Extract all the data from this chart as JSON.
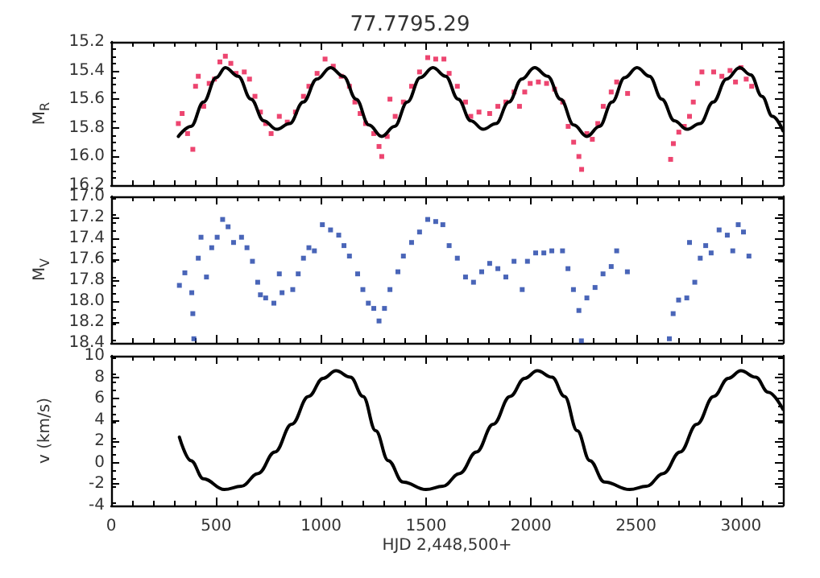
{
  "chart_data": [
    {
      "type": "scatter",
      "title": "77.7795.29",
      "ylabel": "M$_{R}$",
      "xlim": [
        0,
        3200
      ],
      "xticks": [
        0,
        500,
        1000,
        1500,
        2000,
        2500,
        3000
      ],
      "ylim": [
        16.2,
        15.2
      ],
      "yticks": [
        15.2,
        15.4,
        15.6,
        15.8,
        {
          "value": 16,
          "label": "16.0"
        },
        16.2
      ],
      "grid": false,
      "marker": "square",
      "tick_labels": "y",
      "series": [
        {
          "color": "#e8174c",
          "x": [
            320,
            338,
            364,
            389,
            402,
            415,
            441,
            467,
            492,
            518,
            544,
            570,
            595,
            634,
            659,
            685,
            711,
            736,
            762,
            801,
            839,
            878,
            916,
            942,
            981,
            1019,
            1058,
            1096,
            1135,
            1161,
            1186,
            1212,
            1251,
            1276,
            1289,
            1315,
            1328,
            1353,
            1392,
            1431,
            1469,
            1508,
            1546,
            1585,
            1610,
            1649,
            1688,
            1713,
            1752,
            1803,
            1842,
            1880,
            1919,
            1945,
            1970,
            1996,
            2035,
            2074,
            2112,
            2151,
            2177,
            2203,
            2228,
            2241,
            2266,
            2292,
            2318,
            2344,
            2382,
            2408,
            2460,
            2665,
            2678,
            2704,
            2730,
            2755,
            2773,
            2793,
            2814,
            2870,
            2909,
            2948,
            2974,
            3000,
            3025,
            3051
          ],
          "values": [
            15.77,
            15.7,
            15.84,
            15.95,
            15.51,
            15.44,
            15.65,
            15.49,
            15.46,
            15.34,
            15.3,
            15.35,
            15.42,
            15.41,
            15.46,
            15.58,
            15.69,
            15.77,
            15.84,
            15.72,
            15.76,
            15.69,
            15.58,
            15.51,
            15.42,
            15.32,
            15.37,
            15.44,
            15.51,
            15.62,
            15.7,
            15.77,
            15.84,
            15.93,
            16.0,
            15.86,
            15.6,
            15.72,
            15.62,
            15.51,
            15.41,
            15.31,
            15.32,
            15.32,
            15.42,
            15.51,
            15.62,
            15.72,
            15.69,
            15.7,
            15.65,
            15.62,
            15.55,
            15.65,
            15.55,
            15.49,
            15.48,
            15.49,
            15.53,
            15.62,
            15.79,
            15.9,
            16.0,
            16.09,
            15.84,
            15.88,
            15.77,
            15.65,
            15.55,
            15.48,
            15.56,
            16.02,
            15.91,
            15.83,
            15.79,
            15.72,
            15.62,
            15.49,
            15.41,
            15.41,
            15.44,
            15.4,
            15.48,
            15.38,
            15.46,
            15.51
          ]
        },
        {
          "type": "line",
          "color": "#000000",
          "marker": "none",
          "line_style": "solid",
          "x": [
            320,
            380,
            440,
            500,
            544,
            605,
            666,
            727,
            788,
            850,
            915,
            980,
            1045,
            1106,
            1167,
            1228,
            1289,
            1350,
            1411,
            1472,
            1533,
            1593,
            1653,
            1713,
            1772,
            1833,
            1894,
            1956,
            2017,
            2079,
            2141,
            2204,
            2266,
            2326,
            2386,
            2446,
            2505,
            2564,
            2623,
            2683,
            2742,
            2805,
            2868,
            2931,
            2994,
            3046,
            3100,
            3150,
            3200
          ],
          "values": [
            15.86,
            15.79,
            15.62,
            15.45,
            15.38,
            15.44,
            15.6,
            15.75,
            15.81,
            15.77,
            15.62,
            15.46,
            15.38,
            15.44,
            15.6,
            15.78,
            15.86,
            15.79,
            15.62,
            15.45,
            15.38,
            15.44,
            15.6,
            15.75,
            15.81,
            15.77,
            15.62,
            15.46,
            15.38,
            15.44,
            15.6,
            15.78,
            15.86,
            15.79,
            15.62,
            15.45,
            15.38,
            15.44,
            15.6,
            15.75,
            15.81,
            15.77,
            15.62,
            15.46,
            15.38,
            15.43,
            15.58,
            15.72,
            15.82
          ]
        }
      ]
    },
    {
      "type": "scatter",
      "ylabel": "M$_{V}$",
      "xlim": [
        0,
        3200
      ],
      "xticks": [
        0,
        500,
        1000,
        1500,
        2000,
        2500,
        3000
      ],
      "ylim": [
        18.4,
        17.0
      ],
      "yticks": [
        {
          "value": 17,
          "label": "17.0"
        },
        17.2,
        17.4,
        17.6,
        17.8,
        {
          "value": 18,
          "label": "18.0"
        },
        18.2,
        18.4
      ],
      "grid": false,
      "marker": "square",
      "tick_labels": "y",
      "series": [
        {
          "color": "#1c3fa6",
          "x": [
            325,
            351,
            384,
            389,
            394,
            415,
            428,
            454,
            479,
            505,
            531,
            557,
            583,
            621,
            647,
            673,
            698,
            711,
            736,
            775,
            801,
            814,
            865,
            891,
            916,
            942,
            968,
            1006,
            1045,
            1084,
            1109,
            1135,
            1174,
            1199,
            1225,
            1251,
            1276,
            1302,
            1328,
            1366,
            1392,
            1431,
            1469,
            1508,
            1546,
            1580,
            1610,
            1649,
            1688,
            1726,
            1765,
            1803,
            1842,
            1880,
            1919,
            1958,
            1983,
            2022,
            2061,
            2099,
            2150,
            2176,
            2202,
            2228,
            2240,
            2266,
            2305,
            2343,
            2382,
            2408,
            2459,
            2659,
            2677,
            2703,
            2742,
            2755,
            2780,
            2806,
            2832,
            2858,
            2896,
            2935,
            2961,
            2987,
            3012,
            3038
          ],
          "values": [
            17.85,
            17.73,
            17.92,
            18.12,
            18.36,
            17.59,
            17.39,
            17.77,
            17.49,
            17.39,
            17.22,
            17.29,
            17.44,
            17.39,
            17.49,
            17.62,
            17.82,
            17.94,
            17.97,
            18.02,
            17.74,
            17.92,
            17.89,
            17.74,
            17.59,
            17.49,
            17.52,
            17.27,
            17.32,
            17.37,
            17.47,
            17.57,
            17.74,
            17.89,
            18.02,
            18.07,
            18.19,
            18.07,
            17.89,
            17.72,
            17.57,
            17.44,
            17.34,
            17.22,
            17.24,
            17.27,
            17.47,
            17.59,
            17.77,
            17.82,
            17.72,
            17.64,
            17.69,
            17.77,
            17.62,
            17.89,
            17.62,
            17.54,
            17.54,
            17.52,
            17.52,
            17.69,
            17.89,
            18.09,
            18.38,
            17.97,
            17.87,
            17.74,
            17.67,
            17.52,
            17.72,
            18.36,
            18.12,
            17.99,
            17.97,
            17.44,
            17.82,
            17.59,
            17.47,
            17.54,
            17.32,
            17.37,
            17.52,
            17.27,
            17.34,
            17.57
          ]
        }
      ]
    },
    {
      "type": "line",
      "xlabel": "HJD 2,448,500+",
      "ylabel": "v (km/s)",
      "xlim": [
        0,
        3200
      ],
      "xticks": [
        0,
        500,
        1000,
        1500,
        2000,
        2500,
        3000
      ],
      "ylim": [
        -4,
        10
      ],
      "yticks": [
        -4,
        -2,
        0,
        2,
        4,
        6,
        8,
        10
      ],
      "grid": false,
      "marker": "none",
      "line_style": "solid",
      "series": [
        {
          "color": "#000000",
          "x": [
            325,
            380,
            440,
            539,
            620,
            700,
            780,
            860,
            940,
            1010,
            1071,
            1140,
            1200,
            1260,
            1320,
            1390,
            1500,
            1580,
            1660,
            1740,
            1820,
            1900,
            1970,
            2030,
            2100,
            2160,
            2220,
            2280,
            2350,
            2470,
            2550,
            2630,
            2710,
            2790,
            2870,
            2940,
            3000,
            3070,
            3130,
            3200
          ],
          "values": [
            2.4,
            0.2,
            -1.5,
            -2.5,
            -2.2,
            -1.0,
            1.0,
            3.6,
            6.2,
            7.9,
            8.6,
            8.0,
            6.2,
            3.0,
            0.2,
            -1.8,
            -2.5,
            -2.2,
            -1.0,
            1.0,
            3.6,
            6.2,
            7.9,
            8.6,
            8.0,
            6.2,
            3.0,
            0.2,
            -1.8,
            -2.5,
            -2.2,
            -1.0,
            1.0,
            3.6,
            6.2,
            7.9,
            8.6,
            8.0,
            6.6,
            5.0
          ]
        }
      ]
    }
  ]
}
